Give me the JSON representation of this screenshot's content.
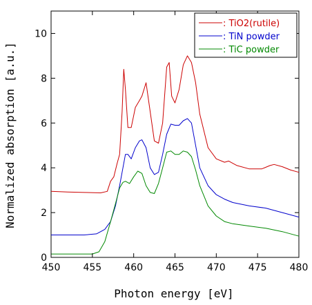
{
  "chart_data": {
    "type": "line",
    "title": "",
    "xlabel": "Photon energy [eV]",
    "ylabel": "Normalized absorption [a.u.]",
    "xlim": [
      450,
      480
    ],
    "ylim": [
      0,
      11
    ],
    "xticks": [
      450,
      455,
      460,
      465,
      470,
      475,
      480
    ],
    "yticks": [
      0,
      2,
      4,
      6,
      8,
      10
    ],
    "grid": false,
    "legend_position": "top-right",
    "series": [
      {
        "name": ": TiO2(rutile)",
        "color": "#cc0000",
        "x": [
          450,
          452,
          454,
          456,
          456.8,
          457.2,
          457.6,
          458.0,
          458.3,
          458.6,
          458.8,
          459.0,
          459.3,
          459.7,
          460.2,
          460.7,
          461.0,
          461.5,
          462.0,
          462.5,
          463.0,
          463.5,
          464.0,
          464.3,
          464.6,
          465.0,
          465.5,
          466.0,
          466.5,
          467.0,
          467.5,
          468.0,
          469.0,
          470.0,
          471.0,
          471.5,
          472.5,
          474.0,
          475.5,
          476.5,
          477.0,
          478.0,
          479.0,
          480.0
        ],
        "y": [
          2.95,
          2.92,
          2.9,
          2.88,
          2.95,
          3.4,
          3.6,
          4.2,
          4.6,
          6.5,
          8.4,
          7.5,
          5.8,
          5.8,
          6.7,
          7.0,
          7.2,
          7.8,
          6.5,
          5.2,
          5.1,
          6.0,
          8.5,
          8.7,
          7.2,
          6.9,
          7.5,
          8.6,
          9.0,
          8.7,
          7.8,
          6.4,
          4.9,
          4.4,
          4.25,
          4.3,
          4.1,
          3.95,
          3.95,
          4.1,
          4.15,
          4.05,
          3.9,
          3.8
        ]
      },
      {
        "name": ": TiN powder",
        "color": "#0000cc",
        "x": [
          450,
          452,
          454,
          455.5,
          456.5,
          457.2,
          457.8,
          458.3,
          458.7,
          459.0,
          459.3,
          459.7,
          460.2,
          460.7,
          461.0,
          461.5,
          462.0,
          462.5,
          463.0,
          463.5,
          464.0,
          464.5,
          465.0,
          465.5,
          466.0,
          466.5,
          467.0,
          467.5,
          468.0,
          469.0,
          470.0,
          471.0,
          472.0,
          474.0,
          476.0,
          478.0,
          480.0
        ],
        "y": [
          1.0,
          1.0,
          1.0,
          1.05,
          1.25,
          1.6,
          2.3,
          3.2,
          4.0,
          4.6,
          4.6,
          4.4,
          4.9,
          5.2,
          5.25,
          4.9,
          4.0,
          3.7,
          3.8,
          4.6,
          5.5,
          5.95,
          5.9,
          5.9,
          6.1,
          6.2,
          6.0,
          5.0,
          4.0,
          3.2,
          2.8,
          2.6,
          2.45,
          2.3,
          2.2,
          2.0,
          1.8
        ]
      },
      {
        "name": ": TiC powder",
        "color": "#008800",
        "x": [
          450,
          452,
          454,
          455.0,
          455.8,
          456.5,
          457.2,
          457.8,
          458.3,
          458.7,
          459.0,
          459.5,
          460.0,
          460.5,
          461.0,
          461.5,
          462.0,
          462.5,
          463.0,
          463.5,
          464.0,
          464.5,
          465.0,
          465.5,
          466.0,
          466.5,
          467.0,
          467.5,
          468.0,
          469.0,
          470.0,
          471.0,
          472.0,
          474.0,
          476.0,
          478.0,
          480.0
        ],
        "y": [
          0.15,
          0.15,
          0.15,
          0.15,
          0.25,
          0.7,
          1.6,
          2.4,
          3.1,
          3.35,
          3.4,
          3.3,
          3.6,
          3.85,
          3.75,
          3.2,
          2.9,
          2.85,
          3.3,
          4.0,
          4.7,
          4.75,
          4.6,
          4.6,
          4.75,
          4.7,
          4.5,
          3.9,
          3.2,
          2.3,
          1.85,
          1.6,
          1.5,
          1.4,
          1.3,
          1.15,
          0.95
        ]
      }
    ]
  }
}
